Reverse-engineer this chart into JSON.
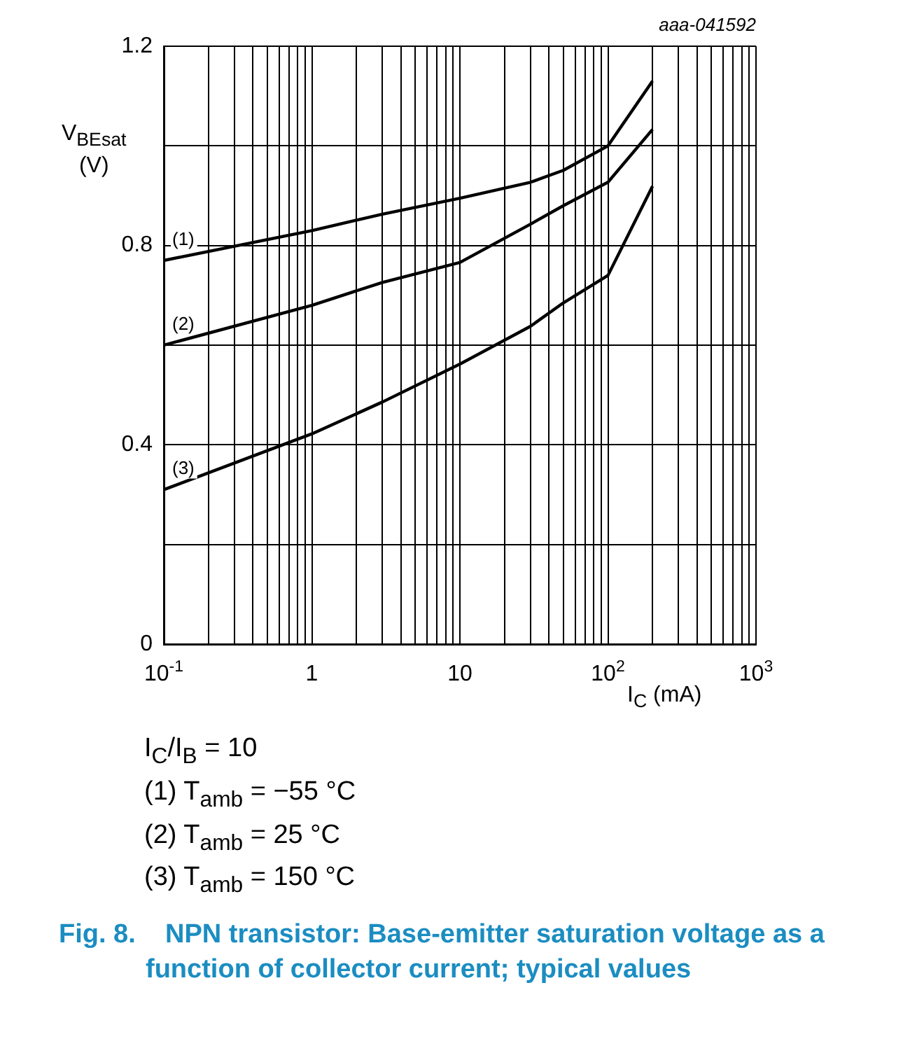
{
  "chart_data": {
    "type": "line",
    "title": "Fig. 8.    NPN transistor: Base-emitter saturation voltage as a function of collector current; typical values",
    "xlabel": "I$_{C}$ (mA)",
    "ylabel": "V$_{BEsat}$ (V)",
    "annotations": [
      "aaa-041592",
      "I$_{C}$/I$_{B}$ = 10",
      "(1) T$_{amb}$ = −55 °C",
      "(2) T$_{amb}$ = 25 °C",
      "(3) T$_{amb}$ = 150 °C"
    ],
    "x": [
      0.1,
      1,
      3,
      10,
      30,
      50,
      100,
      200
    ],
    "series": [
      {
        "name": "(1)",
        "color": "#000000",
        "values": [
          0.77,
          0.83,
          0.863,
          0.895,
          0.927,
          0.951,
          1.0,
          1.13
        ]
      },
      {
        "name": "(2)",
        "color": "#000000",
        "values": [
          0.6,
          0.68,
          0.726,
          0.766,
          0.843,
          0.88,
          0.927,
          1.033
        ]
      },
      {
        "name": "(3)",
        "color": "#000000",
        "values": [
          0.31,
          0.422,
          0.486,
          0.562,
          0.638,
          0.685,
          0.74,
          0.919
        ]
      }
    ],
    "log": "x",
    "xlim": [
      0.1,
      1000
    ],
    "xticks": [
      {
        "value": 0.1,
        "label": "10$^{-1}$"
      },
      {
        "value": 0.2,
        "label": null
      },
      {
        "value": 0.3,
        "label": null
      },
      {
        "value": 0.4,
        "label": null
      },
      {
        "value": 0.5,
        "label": null
      },
      {
        "value": 0.6,
        "label": null
      },
      {
        "value": 0.7,
        "label": null
      },
      {
        "value": 0.8,
        "label": null
      },
      {
        "value": 0.9,
        "label": null
      },
      1,
      {
        "value": 2,
        "label": null
      },
      {
        "value": 3,
        "label": null
      },
      {
        "value": 4,
        "label": null
      },
      {
        "value": 5,
        "label": null
      },
      {
        "value": 6,
        "label": null
      },
      {
        "value": 7,
        "label": null
      },
      {
        "value": 8,
        "label": null
      },
      {
        "value": 9,
        "label": null
      },
      10,
      {
        "value": 20,
        "label": null
      },
      {
        "value": 30,
        "label": null
      },
      {
        "value": 40,
        "label": null
      },
      {
        "value": 50,
        "label": null
      },
      {
        "value": 60,
        "label": null
      },
      {
        "value": 70,
        "label": null
      },
      {
        "value": 80,
        "label": null
      },
      {
        "value": 90,
        "label": null
      },
      {
        "value": 100,
        "label": "10$^{2}$"
      },
      {
        "value": 200,
        "label": null
      },
      {
        "value": 300,
        "label": null
      },
      {
        "value": 400,
        "label": null
      },
      {
        "value": 500,
        "label": null
      },
      {
        "value": 600,
        "label": null
      },
      {
        "value": 700,
        "label": null
      },
      {
        "value": 800,
        "label": null
      },
      {
        "value": 900,
        "label": null
      },
      {
        "value": 1000,
        "label": "10$^{3}$"
      }
    ],
    "ylim": [
      0,
      1.2
    ],
    "yticks": [
      0,
      {
        "value": 0.2,
        "label": null
      },
      0.4,
      {
        "value": 0.6,
        "label": null
      },
      0.8,
      {
        "value": 1.0,
        "label": null
      },
      1.2
    ],
    "grid": true,
    "legend": false,
    "marker": "none",
    "line_style": "solid"
  }
}
